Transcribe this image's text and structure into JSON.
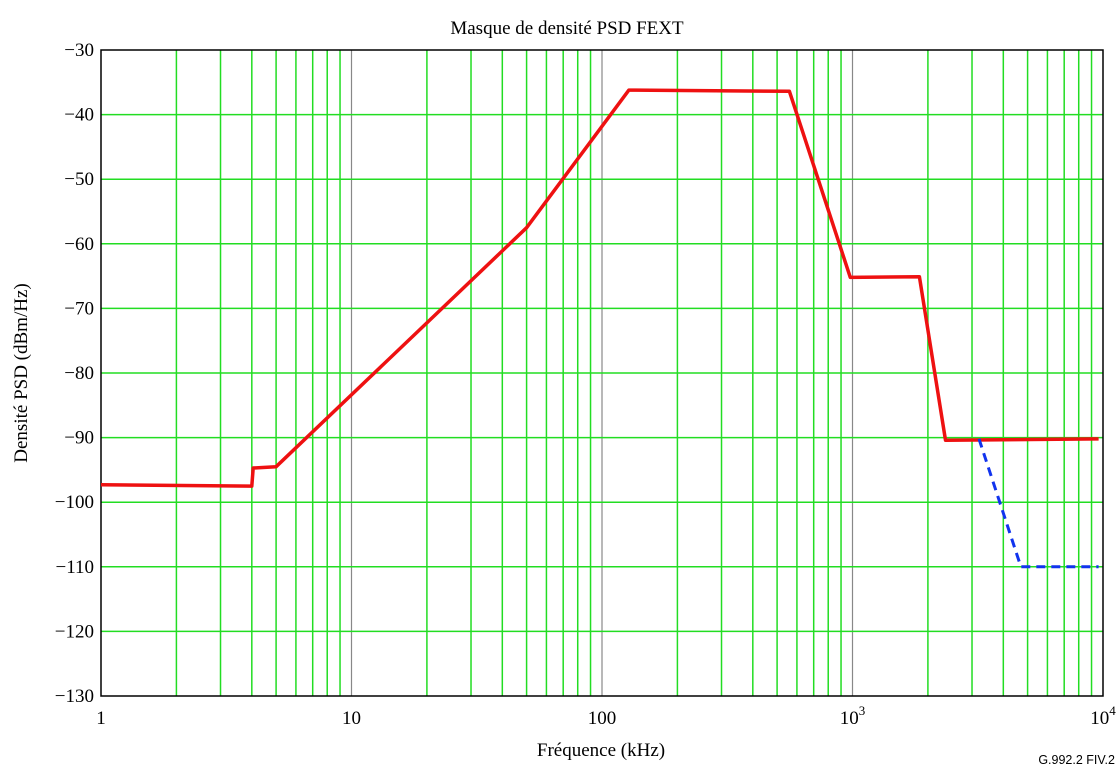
{
  "chart_data": {
    "type": "line",
    "title": "Masque de densité PSD FEXT",
    "xlabel": "Fréquence (kHz)",
    "ylabel": "Densité PSD (dBm/Hz)",
    "x_scale": "log",
    "xlim": [
      1,
      10000
    ],
    "ylim": [
      -130,
      -30
    ],
    "x_ticks": [
      {
        "value": 1,
        "label": "1"
      },
      {
        "value": 10,
        "label": "10"
      },
      {
        "value": 100,
        "label": "100"
      },
      {
        "value": 1000,
        "label": "10",
        "exponent": "3"
      },
      {
        "value": 10000,
        "label": "10",
        "exponent": "4"
      }
    ],
    "y_ticks": [
      -30,
      -40,
      -50,
      -60,
      -70,
      -80,
      -90,
      -100,
      -110,
      -120,
      -130
    ],
    "y_tick_labels": [
      "−30",
      "−40",
      "−50",
      "−60",
      "−70",
      "−80",
      "−90",
      "−100",
      "−110",
      "−120",
      "−130"
    ],
    "grid": true,
    "series": [
      {
        "color": "#ee1111",
        "style": "solid",
        "x": [
          1,
          4,
          4.05,
          5,
          50,
          128,
          560,
          980,
          1850,
          2350,
          9600
        ],
        "y": [
          -97.3,
          -97.5,
          -94.7,
          -94.5,
          -57.5,
          -36.2,
          -36.4,
          -65.2,
          -65.1,
          -90.4,
          -90.2
        ]
      },
      {
        "color": "#1133ee",
        "style": "dashed",
        "x": [
          3200,
          4700,
          9600
        ],
        "y": [
          -90.2,
          -110,
          -110
        ]
      }
    ],
    "colors": {
      "grid_minor": "#22dd22",
      "grid_major": "#888888",
      "frame": "#000000"
    },
    "footnote": "G.992.2  FIV.2"
  }
}
